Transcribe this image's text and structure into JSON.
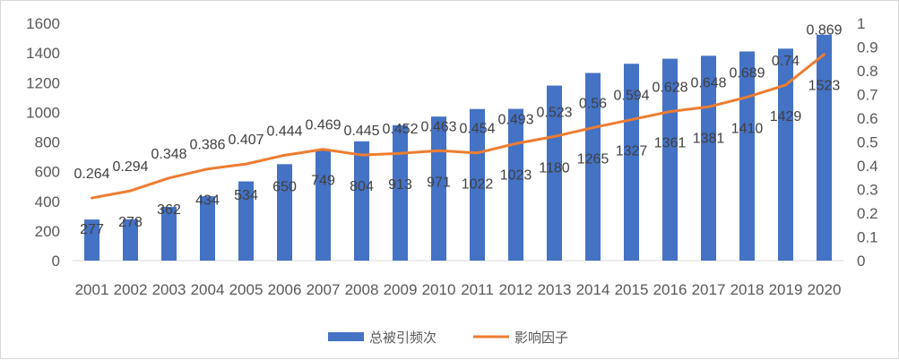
{
  "chart_data": {
    "type": "bar+line",
    "categories": [
      "2001",
      "2002",
      "2003",
      "2004",
      "2005",
      "2006",
      "2007",
      "2008",
      "2009",
      "2010",
      "2011",
      "2012",
      "2013",
      "2014",
      "2015",
      "2016",
      "2017",
      "2018",
      "2019",
      "2020"
    ],
    "series": [
      {
        "name": "总被引频次",
        "type": "bar",
        "axis": "left",
        "color": "#4472C4",
        "values": [
          277,
          278,
          362,
          434,
          534,
          650,
          749,
          804,
          913,
          971,
          1022,
          1023,
          1180,
          1265,
          1327,
          1361,
          1381,
          1410,
          1429,
          1523
        ],
        "labels": [
          "277",
          "278",
          "362",
          "434",
          "534",
          "650",
          "749",
          "804",
          "913",
          "971",
          "1022",
          "1023",
          "1180",
          "1265",
          "1327",
          "1361",
          "1381",
          "1410",
          "1429",
          "1523"
        ]
      },
      {
        "name": "影响因子",
        "type": "line",
        "axis": "right",
        "color": "#ED7D31",
        "values": [
          0.264,
          0.294,
          0.348,
          0.386,
          0.407,
          0.444,
          0.469,
          0.445,
          0.452,
          0.463,
          0.454,
          0.493,
          0.523,
          0.56,
          0.594,
          0.628,
          0.648,
          0.689,
          0.74,
          0.869
        ],
        "labels": [
          "0.264",
          "0.294",
          "0.348",
          "0.386",
          "0.407",
          "0.444",
          "0.469",
          "0.445",
          "0.452",
          "0.463",
          "0.454",
          "0.493",
          "0.523",
          "0.56",
          "0.594",
          "0.628",
          "0.648",
          "0.689",
          "0.74",
          "0.869"
        ]
      }
    ],
    "y_left": {
      "min": 0,
      "max": 1600,
      "ticks": [
        "0",
        "200",
        "400",
        "600",
        "800",
        "1000",
        "1200",
        "1400",
        "1600"
      ]
    },
    "y_right": {
      "min": 0,
      "max": 1,
      "ticks": [
        "0",
        "0.1",
        "0.2",
        "0.3",
        "0.4",
        "0.5",
        "0.6",
        "0.7",
        "0.8",
        "0.9",
        "1"
      ]
    },
    "grid": false,
    "legend": "bottom"
  }
}
